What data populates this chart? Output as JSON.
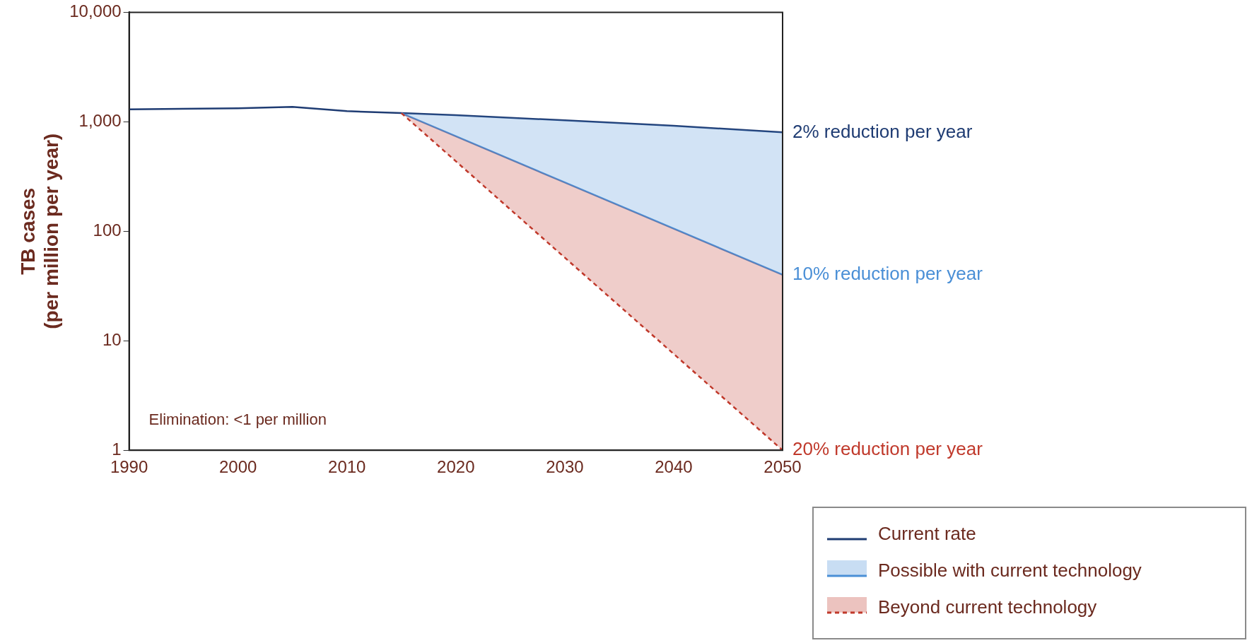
{
  "chart_data": {
    "type": "line",
    "ylabel": "TB cases\n(per million per year)",
    "log": "y",
    "xlim": [
      1990,
      2050
    ],
    "xticks": [
      1990,
      2000,
      2010,
      2020,
      2030,
      2040,
      2050
    ],
    "ylim": [
      1,
      10000
    ],
    "yticks": [
      1,
      10,
      100,
      {
        "value": 1000,
        "label": "1,000"
      },
      {
        "value": 10000,
        "label": "10,000"
      }
    ],
    "grid": false,
    "legend": "bottom right",
    "marker": "none",
    "series": [
      {
        "name": "Current rate",
        "color": "#1f3c73",
        "x": [
          1990,
          2000,
          2005,
          2010,
          2015,
          2020,
          2030,
          2040,
          2050
        ],
        "values": [
          1300,
          1330,
          1370,
          1250,
          1200,
          1150,
          1030,
          920,
          800
        ]
      },
      {
        "name": "Possible with current technology",
        "color": "#4a8fd6",
        "x": [
          2015,
          2050
        ],
        "values": [
          1200,
          40
        ]
      },
      {
        "name": "Beyond current technology",
        "color": "#c0392b",
        "line_style": "dashed",
        "x": [
          2015,
          2050
        ],
        "values": [
          1200,
          1
        ]
      }
    ],
    "annotations": [
      "2% reduction per year",
      "10% reduction per year",
      "20% reduction per year",
      "Elimination: <1 per million"
    ]
  }
}
